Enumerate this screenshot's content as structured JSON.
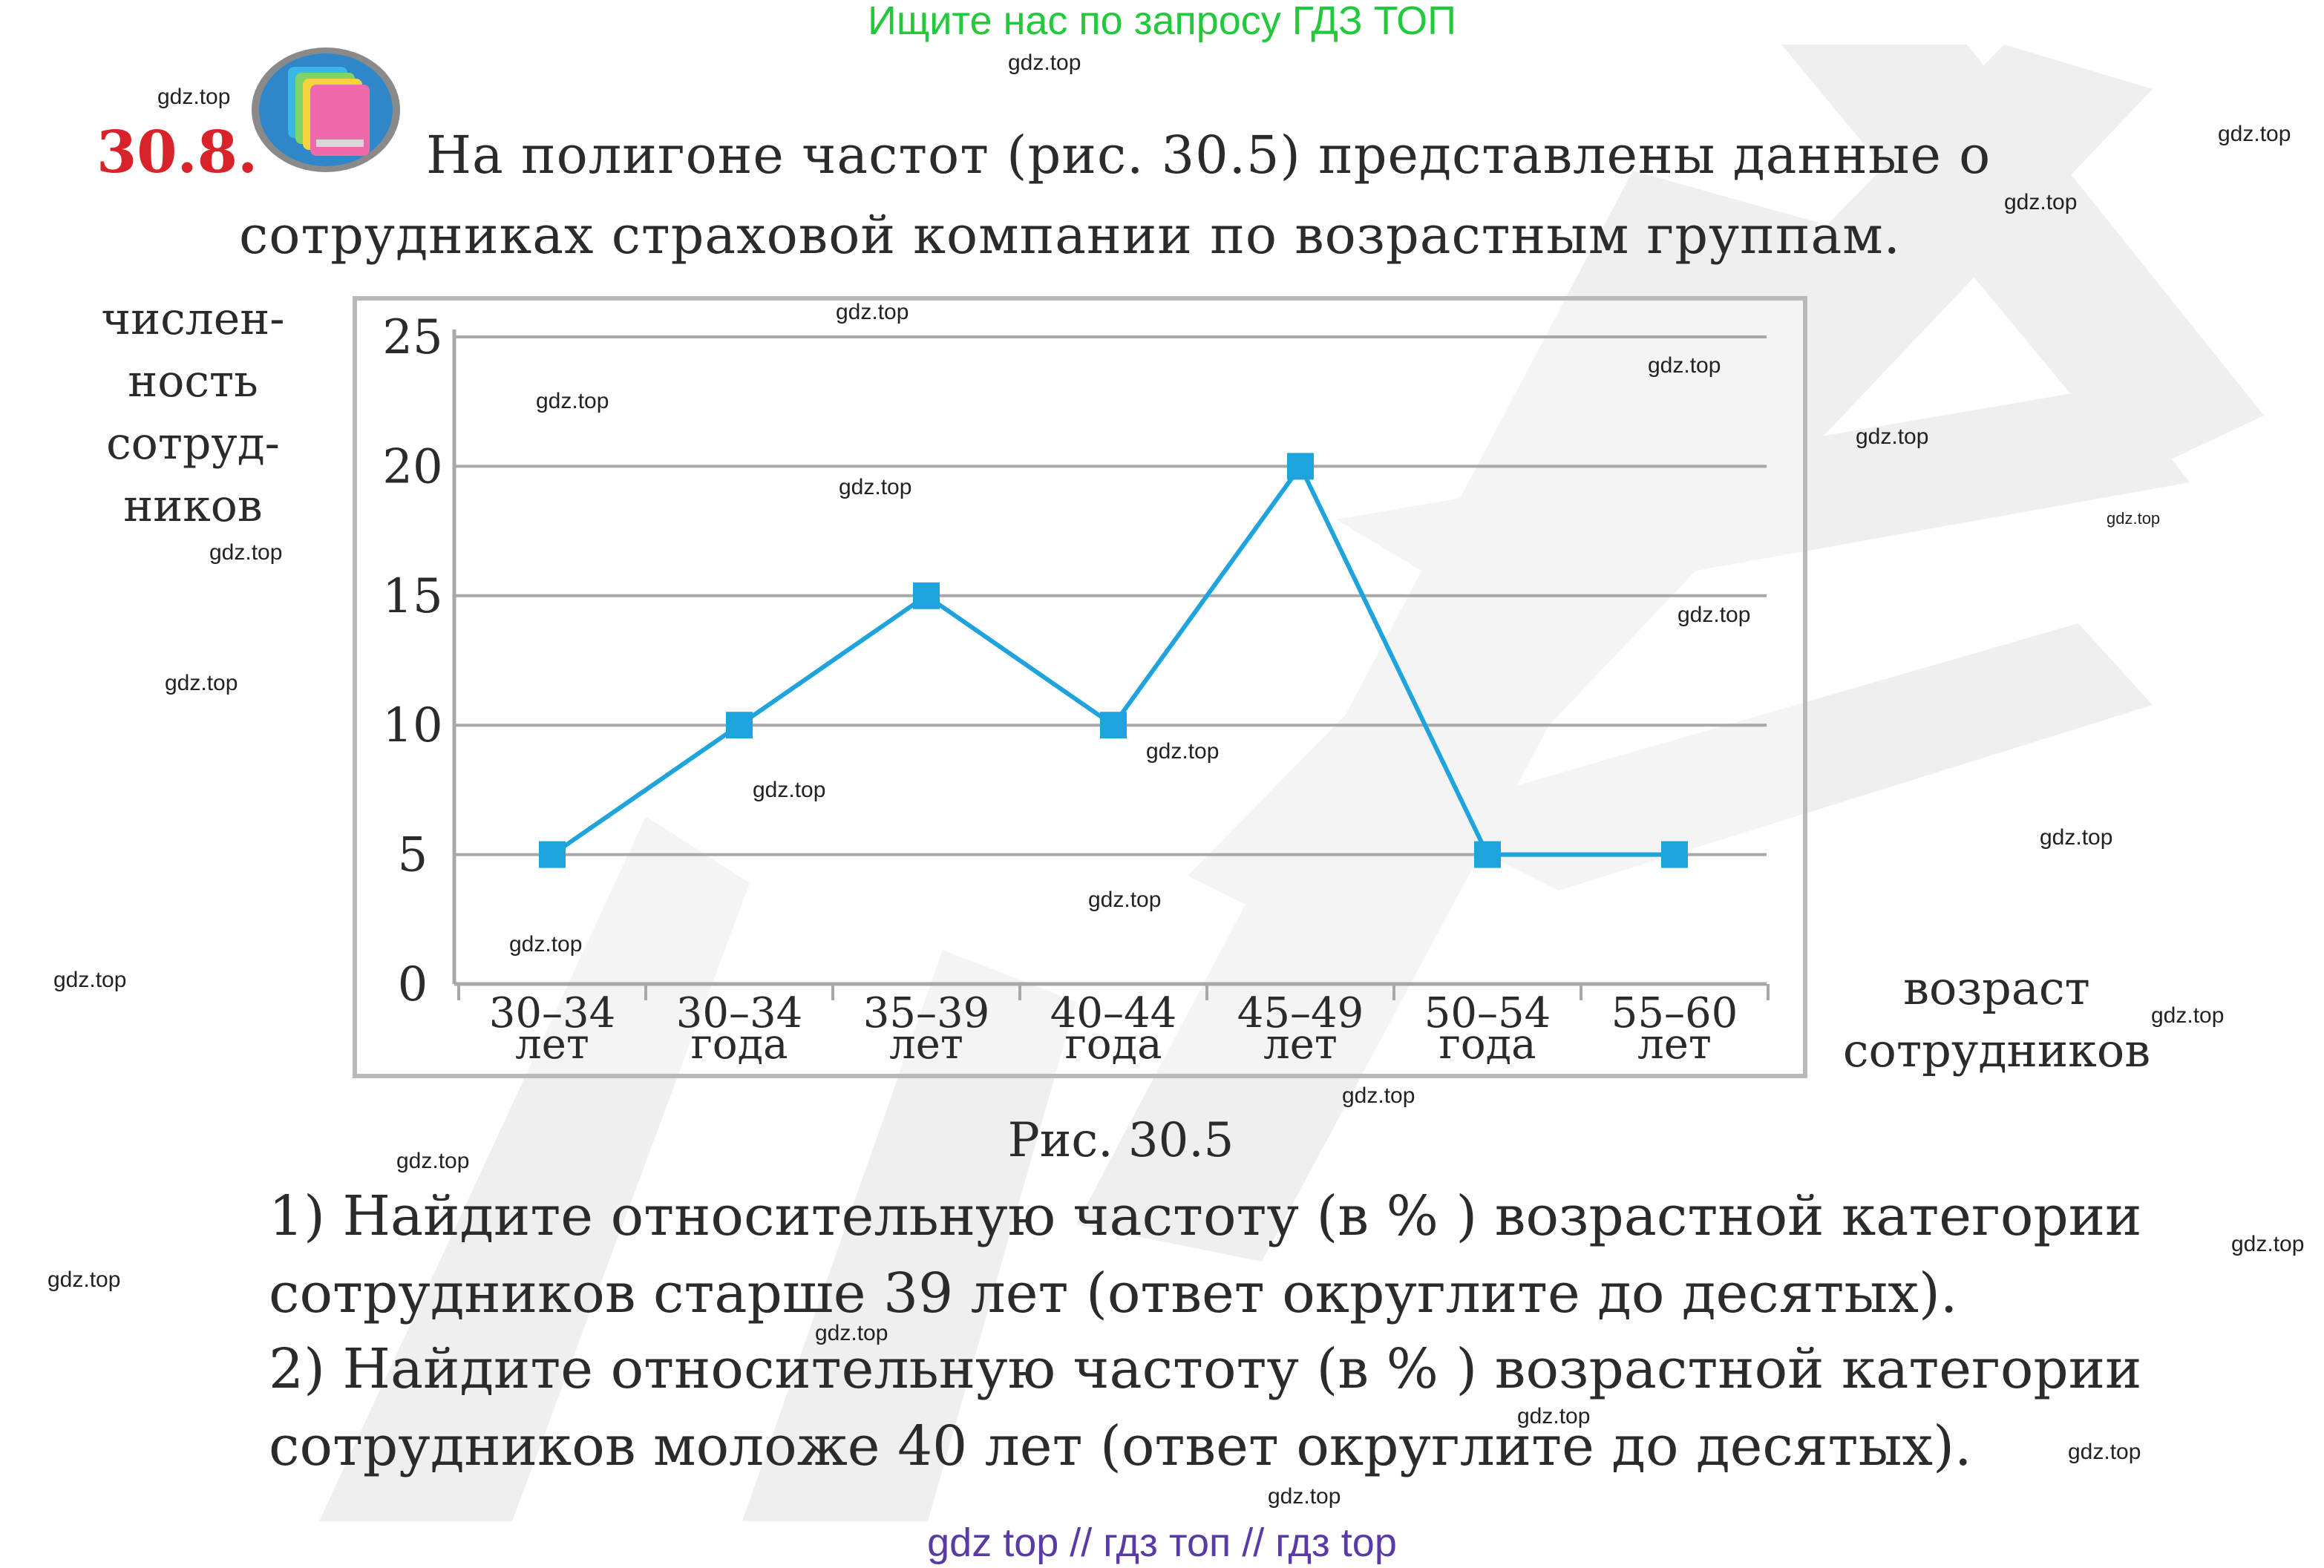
{
  "banner_top": "Ищите нас по запросу ГДЗ ТОП",
  "banner_bottom": "gdz top  //  гдз топ  //  гдз top",
  "watermark_text": "gdz.top",
  "problem_number": "30.8.",
  "problem_lines": [
    "На полигоне частот (рис. 30.5) представлены данные о",
    "сотрудниках страховой компании по возрастным группам."
  ],
  "y_axis_label_lines": [
    "числен-",
    "ность",
    "сотруд-",
    "ников"
  ],
  "x_axis_label_lines": [
    "возраст",
    "сотрудников"
  ],
  "figure_caption": "Рис. 30.5",
  "tasks": [
    "1) Найдите относительную частоту (в % ) возрастной категории",
    "сотрудников старше 39 лет (ответ округлите до десятых).",
    "2) Найдите относительную частоту (в % ) возрастной категории",
    "сотрудников моложе 40 лет (ответ округлите до десятых)."
  ],
  "chart_data": {
    "type": "line",
    "categories": [
      [
        "30–34",
        "лет"
      ],
      [
        "30–34",
        "года"
      ],
      [
        "35–39",
        "лет"
      ],
      [
        "40–44",
        "года"
      ],
      [
        "45–49",
        "лет"
      ],
      [
        "50–54",
        "года"
      ],
      [
        "55–60",
        "лет"
      ]
    ],
    "values": [
      5,
      10,
      15,
      10,
      20,
      5,
      5
    ],
    "y_ticks": [
      0,
      5,
      10,
      15,
      20,
      25
    ],
    "ylim": [
      0,
      25
    ],
    "grid": true,
    "line_color": "#1fa3dc",
    "marker_color": "#1fa3dc",
    "grid_color": "#a8a8a8",
    "frame_color": "#b9b9b9"
  },
  "colors": {
    "problem_number": "#d8232a",
    "banner_top": "#22c93a",
    "banner_bottom": "#5a3aa6"
  },
  "icons": [
    "book-stack-icon"
  ]
}
